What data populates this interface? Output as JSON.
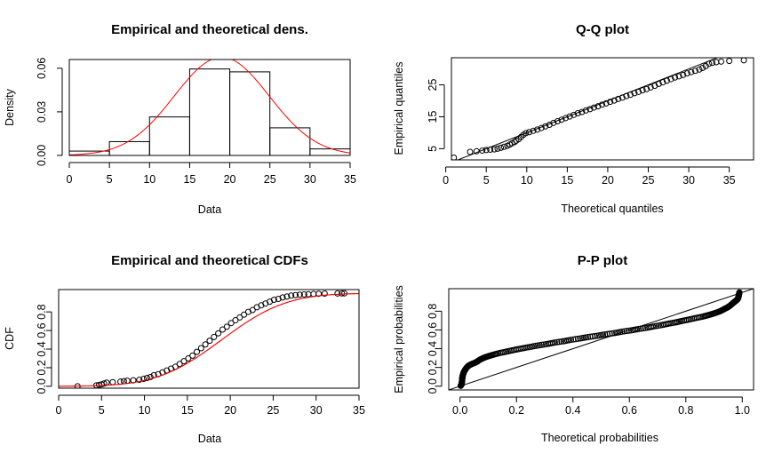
{
  "chart_data": [
    {
      "id": "density",
      "type": "bar",
      "title": "Empirical and theoretical dens.",
      "xlabel": "Data",
      "ylabel": "Density",
      "xlim": [
        0,
        35
      ],
      "ylim": [
        0,
        0.066
      ],
      "x_ticks": [
        0,
        5,
        10,
        15,
        20,
        25,
        30,
        35
      ],
      "y_ticks": [
        0.0,
        0.03,
        0.06
      ],
      "y_tick_labels": [
        "0.00",
        "0.03",
        "0.06"
      ],
      "grid": false,
      "histogram": {
        "bins": [
          [
            0,
            5
          ],
          [
            5,
            10
          ],
          [
            10,
            15
          ],
          [
            15,
            20
          ],
          [
            20,
            25
          ],
          [
            25,
            30
          ],
          [
            30,
            35
          ]
        ],
        "density": [
          0.003,
          0.0095,
          0.0265,
          0.0595,
          0.0575,
          0.019,
          0.0045
        ]
      },
      "theoretical_curve": {
        "distribution": "normal",
        "mean": 19,
        "sd": 5.9,
        "color": "#ff0000"
      }
    },
    {
      "id": "qq",
      "type": "scatter",
      "title": "Q-Q plot",
      "xlabel": "Theoretical quantiles",
      "ylabel": "Empirical quantiles",
      "xlim": [
        0.7,
        38
      ],
      "ylim": [
        1.5,
        33.5
      ],
      "x_ticks": [
        0,
        5,
        10,
        15,
        20,
        25,
        30,
        35
      ],
      "y_ticks": [
        5,
        15,
        25
      ],
      "grid": false,
      "reference_line": {
        "slope": 1,
        "intercept": 0
      },
      "points": [
        [
          1.0,
          2.2
        ],
        [
          3.0,
          4.0
        ],
        [
          3.8,
          4.2
        ],
        [
          4.5,
          4.4
        ],
        [
          5.0,
          4.6
        ],
        [
          5.5,
          4.7
        ],
        [
          6.0,
          4.8
        ],
        [
          6.4,
          5.0
        ],
        [
          6.8,
          5.3
        ],
        [
          7.2,
          5.6
        ],
        [
          7.6,
          5.9
        ],
        [
          7.9,
          6.3
        ],
        [
          8.2,
          6.7
        ],
        [
          8.5,
          7.1
        ],
        [
          8.7,
          7.5
        ],
        [
          9.0,
          8.0
        ],
        [
          9.3,
          8.7
        ],
        [
          9.6,
          9.4
        ],
        [
          9.9,
          9.9
        ],
        [
          10.3,
          10.2
        ],
        [
          10.8,
          10.6
        ],
        [
          11.3,
          11.0
        ],
        [
          11.8,
          11.5
        ],
        [
          12.3,
          12.0
        ],
        [
          12.8,
          12.5
        ],
        [
          13.3,
          13.1
        ],
        [
          13.8,
          13.6
        ],
        [
          14.3,
          14.1
        ],
        [
          14.8,
          14.6
        ],
        [
          15.3,
          15.1
        ],
        [
          15.8,
          15.6
        ],
        [
          16.3,
          16.1
        ],
        [
          16.8,
          16.5
        ],
        [
          17.3,
          17.0
        ],
        [
          17.8,
          17.4
        ],
        [
          18.3,
          17.9
        ],
        [
          18.8,
          18.3
        ],
        [
          19.3,
          18.8
        ],
        [
          19.8,
          19.2
        ],
        [
          20.3,
          19.7
        ],
        [
          20.8,
          20.1
        ],
        [
          21.3,
          20.6
        ],
        [
          21.8,
          21.0
        ],
        [
          22.3,
          21.5
        ],
        [
          22.8,
          21.9
        ],
        [
          23.3,
          22.4
        ],
        [
          23.8,
          22.8
        ],
        [
          24.3,
          23.3
        ],
        [
          24.8,
          23.7
        ],
        [
          25.3,
          24.2
        ],
        [
          25.8,
          24.7
        ],
        [
          26.3,
          25.3
        ],
        [
          26.8,
          25.8
        ],
        [
          27.3,
          26.3
        ],
        [
          27.8,
          26.8
        ],
        [
          28.3,
          27.3
        ],
        [
          28.8,
          27.7
        ],
        [
          29.3,
          28.1
        ],
        [
          29.8,
          28.6
        ],
        [
          30.3,
          29.0
        ],
        [
          30.8,
          29.4
        ],
        [
          31.3,
          29.8
        ],
        [
          31.7,
          30.3
        ],
        [
          32.1,
          30.9
        ],
        [
          32.5,
          31.6
        ],
        [
          32.9,
          31.9
        ],
        [
          33.4,
          32.1
        ],
        [
          34.0,
          32.3
        ],
        [
          35.0,
          32.5
        ],
        [
          36.8,
          32.7
        ]
      ]
    },
    {
      "id": "cdf",
      "type": "line",
      "title": "Empirical and theoretical CDFs",
      "xlabel": "Data",
      "ylabel": "CDF",
      "xlim": [
        0,
        35
      ],
      "ylim": [
        -0.02,
        1.04
      ],
      "x_ticks": [
        0,
        5,
        10,
        15,
        20,
        25,
        30,
        35
      ],
      "y_ticks": [
        0.0,
        0.2,
        0.4,
        0.6,
        0.8
      ],
      "y_tick_labels": [
        "0.0",
        "0.2",
        "0.4",
        "0.6",
        "0.8"
      ],
      "grid": false,
      "theoretical_curve": {
        "distribution": "normal",
        "mean": 19,
        "sd": 5.9,
        "color": "#ff0000"
      },
      "empirical_points": [
        [
          2.2,
          0.0
        ],
        [
          4.4,
          0.01
        ],
        [
          4.7,
          0.015
        ],
        [
          5.0,
          0.02
        ],
        [
          5.3,
          0.03
        ],
        [
          5.6,
          0.04
        ],
        [
          6.3,
          0.045
        ],
        [
          7.2,
          0.05
        ],
        [
          7.6,
          0.055
        ],
        [
          8.0,
          0.06
        ],
        [
          8.7,
          0.065
        ],
        [
          9.4,
          0.07
        ],
        [
          9.9,
          0.08
        ],
        [
          10.3,
          0.09
        ],
        [
          10.7,
          0.1
        ],
        [
          11.1,
          0.12
        ],
        [
          11.6,
          0.13
        ],
        [
          12.1,
          0.15
        ],
        [
          12.6,
          0.17
        ],
        [
          13.1,
          0.19
        ],
        [
          13.6,
          0.21
        ],
        [
          14.1,
          0.24
        ],
        [
          14.6,
          0.27
        ],
        [
          15.1,
          0.3
        ],
        [
          15.6,
          0.33
        ],
        [
          16.1,
          0.37
        ],
        [
          16.6,
          0.41
        ],
        [
          17.1,
          0.45
        ],
        [
          17.6,
          0.49
        ],
        [
          18.1,
          0.53
        ],
        [
          18.6,
          0.57
        ],
        [
          19.1,
          0.61
        ],
        [
          19.6,
          0.64
        ],
        [
          20.1,
          0.68
        ],
        [
          20.6,
          0.71
        ],
        [
          21.1,
          0.74
        ],
        [
          21.6,
          0.77
        ],
        [
          22.1,
          0.8
        ],
        [
          22.6,
          0.82
        ],
        [
          23.1,
          0.85
        ],
        [
          23.6,
          0.87
        ],
        [
          24.1,
          0.89
        ],
        [
          24.6,
          0.91
        ],
        [
          25.1,
          0.93
        ],
        [
          25.6,
          0.94
        ],
        [
          26.1,
          0.955
        ],
        [
          26.6,
          0.965
        ],
        [
          27.1,
          0.975
        ],
        [
          27.6,
          0.98
        ],
        [
          28.1,
          0.985
        ],
        [
          28.6,
          0.988
        ],
        [
          29.1,
          0.99
        ],
        [
          29.7,
          0.993
        ],
        [
          30.3,
          0.995
        ],
        [
          31.0,
          0.997
        ],
        [
          32.5,
          0.998
        ],
        [
          33.0,
          0.999
        ],
        [
          33.3,
          1.0
        ]
      ]
    },
    {
      "id": "pp",
      "type": "scatter",
      "title": "P-P plot",
      "xlabel": "Theoretical probabilities",
      "ylabel": "Empirical probabilities",
      "xlim": [
        -0.04,
        1.04
      ],
      "ylim": [
        -0.04,
        1.04
      ],
      "x_ticks": [
        0.0,
        0.2,
        0.4,
        0.6,
        0.8,
        1.0
      ],
      "x_tick_labels": [
        "0.0",
        "0.2",
        "0.4",
        "0.6",
        "0.8",
        "1.0"
      ],
      "y_ticks": [
        0.0,
        0.2,
        0.4,
        0.6,
        0.8
      ],
      "y_tick_labels": [
        "0.0",
        "0.2",
        "0.4",
        "0.6",
        "0.8"
      ],
      "grid": false,
      "reference_line": {
        "slope": 1,
        "intercept": 0
      },
      "empirical_probabilities_rule": "ecdf",
      "theoretical_distribution": {
        "distribution": "normal",
        "mean": 19,
        "sd": 5.9
      }
    }
  ]
}
